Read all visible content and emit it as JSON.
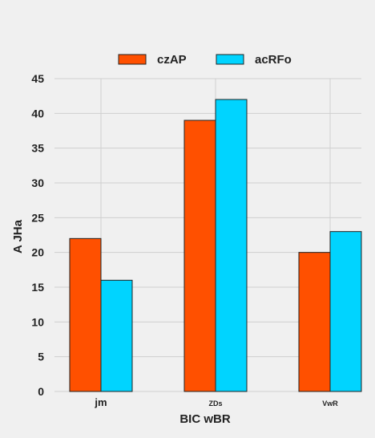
{
  "chart_data": {
    "type": "bar",
    "categories": [
      "jm",
      "ZDs",
      "VwR"
    ],
    "series": [
      {
        "name": "czAP",
        "color": "#ff5000",
        "values": [
          22,
          39,
          20
        ]
      },
      {
        "name": "acRFo",
        "color": "#00d4ff",
        "values": [
          16,
          42,
          23
        ]
      }
    ],
    "xlabel": "BIC   wBR",
    "ylabel": "A JHa",
    "ylim": [
      0,
      45
    ],
    "yticks": [
      0,
      5,
      10,
      15,
      20,
      25,
      30,
      35,
      40,
      45
    ],
    "grid": true,
    "legend_position": "top-center"
  }
}
